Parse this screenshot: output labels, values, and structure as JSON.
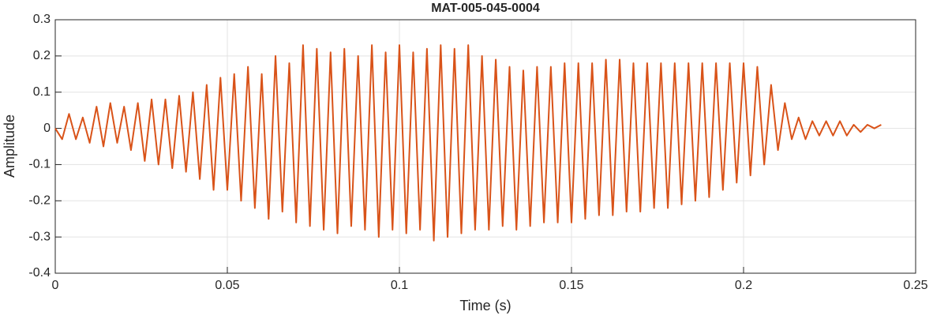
{
  "chart_data": {
    "type": "line",
    "title": "MAT-005-045-0004",
    "x_label": "Time (s)",
    "y_label": "Amplitude",
    "x": [
      0,
      0.002,
      0.004,
      0.006,
      0.008,
      0.01,
      0.012,
      0.014,
      0.016,
      0.018,
      0.02,
      0.022,
      0.024,
      0.026,
      0.028,
      0.03,
      0.032,
      0.034,
      0.036,
      0.038,
      0.04,
      0.042,
      0.044,
      0.046,
      0.048,
      0.05,
      0.052,
      0.054,
      0.056,
      0.058,
      0.06,
      0.062,
      0.064,
      0.066,
      0.068,
      0.07,
      0.072,
      0.074,
      0.076,
      0.078,
      0.08,
      0.082,
      0.084,
      0.086,
      0.088,
      0.09,
      0.092,
      0.094,
      0.096,
      0.098,
      0.1,
      0.102,
      0.104,
      0.106,
      0.108,
      0.11,
      0.112,
      0.114,
      0.116,
      0.118,
      0.12,
      0.122,
      0.124,
      0.126,
      0.128,
      0.13,
      0.132,
      0.134,
      0.136,
      0.138,
      0.14,
      0.142,
      0.144,
      0.146,
      0.148,
      0.15,
      0.152,
      0.154,
      0.156,
      0.158,
      0.16,
      0.162,
      0.164,
      0.166,
      0.168,
      0.17,
      0.172,
      0.174,
      0.176,
      0.178,
      0.18,
      0.182,
      0.184,
      0.186,
      0.188,
      0.19,
      0.192,
      0.194,
      0.196,
      0.198,
      0.2,
      0.202,
      0.204,
      0.206,
      0.208,
      0.21,
      0.212,
      0.214,
      0.216,
      0.218,
      0.22,
      0.222,
      0.224,
      0.226,
      0.228,
      0.23,
      0.232,
      0.234,
      0.236,
      0.238,
      0.24
    ],
    "series": [
      {
        "name": "Amplitude",
        "color": "#d95319",
        "values": [
          0,
          -0.03,
          0.04,
          -0.03,
          0.03,
          -0.04,
          0.06,
          -0.05,
          0.07,
          -0.04,
          0.06,
          -0.06,
          0.07,
          -0.09,
          0.08,
          -0.1,
          0.08,
          -0.11,
          0.09,
          -0.12,
          0.1,
          -0.14,
          0.12,
          -0.17,
          0.14,
          -0.17,
          0.15,
          -0.2,
          0.17,
          -0.22,
          0.15,
          -0.25,
          0.2,
          -0.23,
          0.18,
          -0.26,
          0.23,
          -0.27,
          0.22,
          -0.28,
          0.21,
          -0.29,
          0.22,
          -0.27,
          0.2,
          -0.28,
          0.23,
          -0.3,
          0.21,
          -0.28,
          0.23,
          -0.29,
          0.21,
          -0.28,
          0.22,
          -0.31,
          0.23,
          -0.3,
          0.22,
          -0.29,
          0.23,
          -0.28,
          0.2,
          -0.28,
          0.19,
          -0.27,
          0.17,
          -0.28,
          0.16,
          -0.27,
          0.17,
          -0.26,
          0.17,
          -0.26,
          0.18,
          -0.26,
          0.18,
          -0.25,
          0.18,
          -0.24,
          0.19,
          -0.24,
          0.19,
          -0.23,
          0.18,
          -0.23,
          0.18,
          -0.22,
          0.18,
          -0.22,
          0.18,
          -0.21,
          0.18,
          -0.2,
          0.18,
          -0.19,
          0.18,
          -0.17,
          0.18,
          -0.15,
          0.18,
          -0.13,
          0.17,
          -0.1,
          0.12,
          -0.06,
          0.07,
          -0.03,
          0.03,
          -0.03,
          0.02,
          -0.02,
          0.02,
          -0.02,
          0.02,
          -0.02,
          0.01,
          -0.01,
          0.01,
          0,
          0.01
        ]
      }
    ],
    "xlim": [
      0,
      0.25
    ],
    "xticks": [
      0,
      0.05,
      0.1,
      0.15,
      0.2,
      0.25
    ],
    "ylim": [
      -0.4,
      0.3
    ],
    "yticks": [
      -0.4,
      -0.3,
      -0.2,
      -0.1,
      0,
      0.1,
      0.2,
      0.3
    ],
    "grid": true
  }
}
